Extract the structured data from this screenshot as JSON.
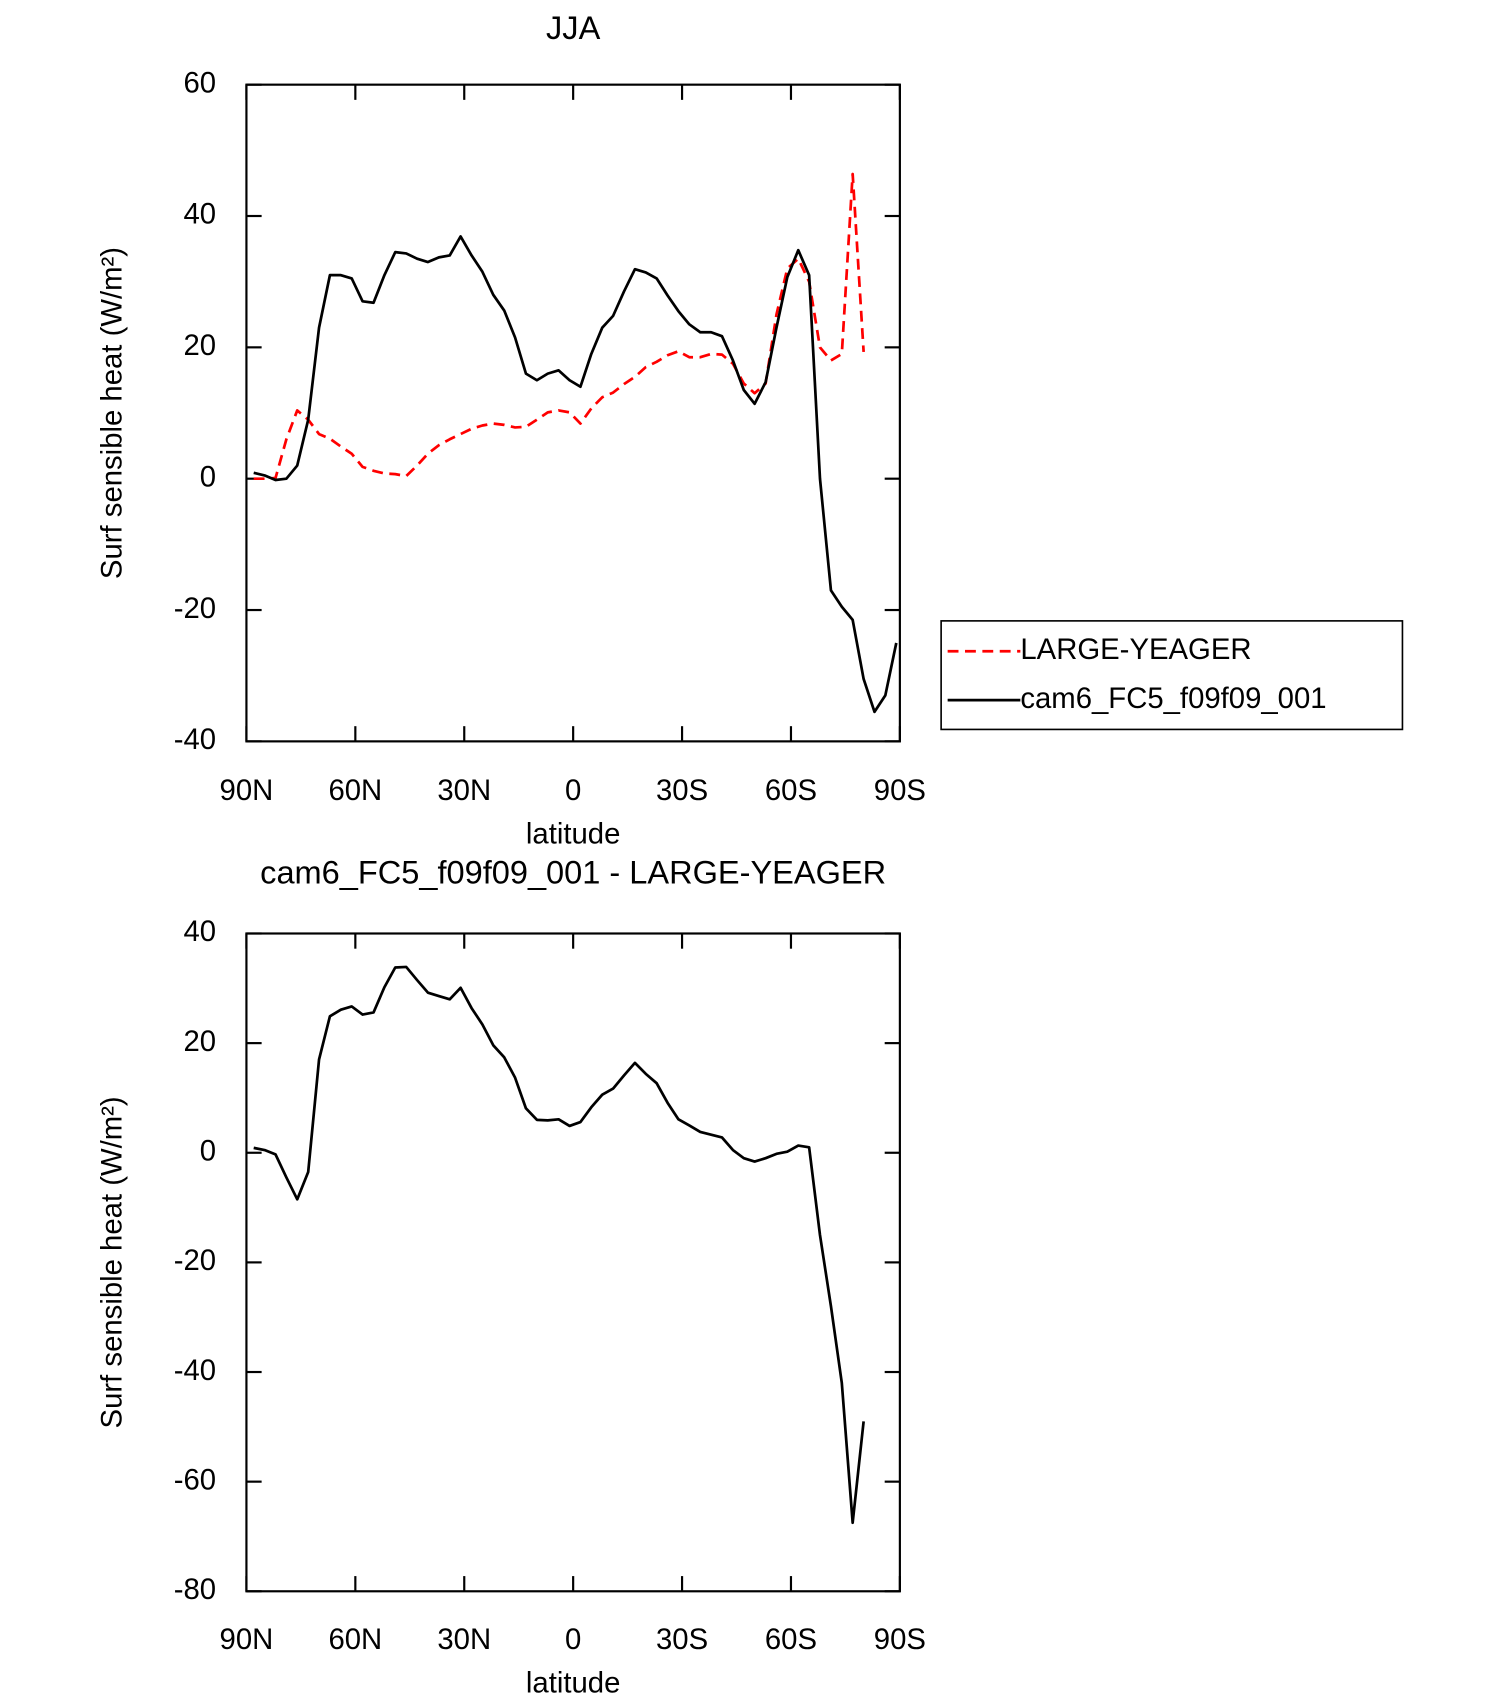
{
  "chart_data": [
    {
      "type": "line",
      "title": "JJA",
      "xlabel": "latitude",
      "ylabel": "Surf sensible heat (W/m²)",
      "x": [
        88,
        85,
        82,
        79,
        76,
        73,
        70,
        67,
        64,
        61,
        58,
        55,
        52,
        49,
        46,
        43,
        40,
        37,
        34,
        31,
        28,
        25,
        22,
        19,
        16,
        13,
        10,
        7,
        4,
        1,
        -2,
        -5,
        -8,
        -11,
        -14,
        -17,
        -20,
        -23,
        -26,
        -29,
        -32,
        -35,
        -38,
        -41,
        -44,
        -47,
        -50,
        -53,
        -56,
        -59,
        -62,
        -65,
        -68,
        -71,
        -74,
        -77,
        -80,
        -83,
        -86,
        -89
      ],
      "xlim": [
        90,
        -90
      ],
      "xticks": [
        {
          "value": 90,
          "label": "90N"
        },
        {
          "value": 60,
          "label": "60N"
        },
        {
          "value": 30,
          "label": "30N"
        },
        0,
        {
          "value": -30,
          "label": "30S"
        },
        {
          "value": -60,
          "label": "60S"
        },
        {
          "value": -90,
          "label": "90S"
        }
      ],
      "ylim": [
        -40,
        60
      ],
      "yticks": [
        -40,
        -20,
        0,
        20,
        40,
        60
      ],
      "legend": "outside-right",
      "series": [
        {
          "name": "LARGE-YEAGER",
          "color": "#ff0000",
          "dashed": true,
          "values": [
            0,
            0,
            0.1,
            6,
            10.4,
            9,
            6.8,
            6.1,
            4.9,
            3.8,
            1.8,
            1.2,
            0.8,
            0.7,
            0.4,
            2,
            3.8,
            5.1,
            6,
            6.8,
            7.6,
            8.1,
            8.4,
            8.2,
            7.8,
            7.9,
            9,
            10.1,
            10.4,
            10.1,
            8.4,
            10.7,
            12.4,
            13.1,
            14.4,
            15.5,
            17,
            17.8,
            18.8,
            19.4,
            18.5,
            18.5,
            19,
            18.9,
            17.5,
            14.5,
            13,
            14.5,
            25,
            32,
            33.5,
            30,
            20,
            18,
            19,
            46.4,
            19.3,
            null,
            null,
            null
          ]
        },
        {
          "name": "cam6_FC5_f09f09_001",
          "color": "#000000",
          "dashed": false,
          "values": [
            0.9,
            0.5,
            -0.2,
            0,
            2,
            9,
            23,
            31,
            31,
            30.5,
            27,
            26.8,
            31,
            34.5,
            34.3,
            33.5,
            33,
            33.7,
            34,
            36.9,
            34,
            31.5,
            28,
            25.6,
            21.5,
            16,
            15,
            16,
            16.5,
            15,
            14,
            19,
            23,
            24.8,
            28.5,
            31.9,
            31.4,
            30.5,
            27.9,
            25.5,
            23.5,
            22.3,
            22.3,
            21.7,
            18,
            13.5,
            11.4,
            14.7,
            23,
            30.7,
            34.8,
            31,
            0,
            -17,
            -19.5,
            -21.5,
            -30.5,
            -35.5,
            -33,
            -25
          ]
        }
      ]
    },
    {
      "type": "line",
      "title": "cam6_FC5_f09f09_001 - LARGE-YEAGER",
      "xlabel": "latitude",
      "ylabel": "Surf sensible heat (W/m²)",
      "x": [
        88,
        85,
        82,
        79,
        76,
        73,
        70,
        67,
        64,
        61,
        58,
        55,
        52,
        49,
        46,
        43,
        40,
        37,
        34,
        31,
        28,
        25,
        22,
        19,
        16,
        13,
        10,
        7,
        4,
        1,
        -2,
        -5,
        -8,
        -11,
        -14,
        -17,
        -20,
        -23,
        -26,
        -29,
        -32,
        -35,
        -38,
        -41,
        -44,
        -47,
        -50,
        -53,
        -56,
        -59,
        -62,
        -65,
        -68,
        -71,
        -74,
        -77,
        -80,
        -83,
        -86,
        -89
      ],
      "xlim": [
        90,
        -90
      ],
      "xticks": [
        {
          "value": 90,
          "label": "90N"
        },
        {
          "value": 60,
          "label": "60N"
        },
        {
          "value": 30,
          "label": "30N"
        },
        0,
        {
          "value": -30,
          "label": "30S"
        },
        {
          "value": -60,
          "label": "60S"
        },
        {
          "value": -90,
          "label": "90S"
        }
      ],
      "ylim": [
        -80,
        40
      ],
      "yticks": [
        -80,
        -60,
        -40,
        -20,
        0,
        20,
        40
      ],
      "series": [
        {
          "color": "#000000",
          "dashed": false,
          "values": [
            0.9,
            0.5,
            -0.3,
            -4.5,
            -8.5,
            -3.5,
            17,
            24.9,
            26.1,
            26.7,
            25.2,
            25.6,
            30.2,
            33.8,
            33.9,
            31.5,
            29.2,
            28.6,
            28,
            30.1,
            26.4,
            23.4,
            19.6,
            17.4,
            13.7,
            8.1,
            6,
            5.9,
            6.1,
            4.9,
            5.6,
            8.3,
            10.6,
            11.7,
            14.1,
            16.4,
            14.4,
            12.7,
            9.1,
            6.1,
            5,
            3.8,
            3.3,
            2.8,
            0.5,
            -1,
            -1.6,
            -1,
            -0.2,
            0.2,
            1.3,
            1,
            -15,
            -28,
            -42,
            -67.5,
            -49,
            null,
            null,
            null
          ]
        }
      ]
    }
  ]
}
